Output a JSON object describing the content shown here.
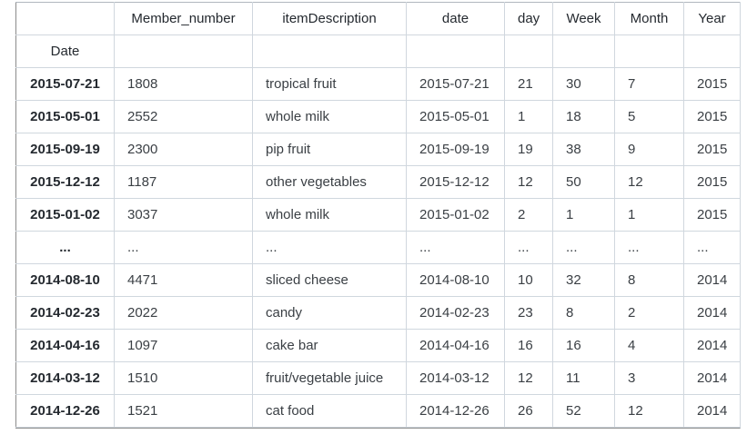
{
  "columns": [
    "Member_number",
    "itemDescription",
    "date",
    "day",
    "Week",
    "Month",
    "Year"
  ],
  "index_name": "Date",
  "rows": [
    {
      "index": "2015-07-21",
      "cells": [
        "1808",
        "tropical fruit",
        "2015-07-21",
        "21",
        "30",
        "7",
        "2015"
      ]
    },
    {
      "index": "2015-05-01",
      "cells": [
        "2552",
        "whole milk",
        "2015-05-01",
        "1",
        "18",
        "5",
        "2015"
      ]
    },
    {
      "index": "2015-09-19",
      "cells": [
        "2300",
        "pip fruit",
        "2015-09-19",
        "19",
        "38",
        "9",
        "2015"
      ]
    },
    {
      "index": "2015-12-12",
      "cells": [
        "1187",
        "other vegetables",
        "2015-12-12",
        "12",
        "50",
        "12",
        "2015"
      ]
    },
    {
      "index": "2015-01-02",
      "cells": [
        "3037",
        "whole milk",
        "2015-01-02",
        "2",
        "1",
        "1",
        "2015"
      ]
    },
    {
      "index": "...",
      "cells": [
        "...",
        "...",
        "...",
        "...",
        "...",
        "...",
        "..."
      ]
    },
    {
      "index": "2014-08-10",
      "cells": [
        "4471",
        "sliced cheese",
        "2014-08-10",
        "10",
        "32",
        "8",
        "2014"
      ]
    },
    {
      "index": "2014-02-23",
      "cells": [
        "2022",
        "candy",
        "2014-02-23",
        "23",
        "8",
        "2",
        "2014"
      ]
    },
    {
      "index": "2014-04-16",
      "cells": [
        "1097",
        "cake bar",
        "2014-04-16",
        "16",
        "16",
        "4",
        "2014"
      ]
    },
    {
      "index": "2014-03-12",
      "cells": [
        "1510",
        "fruit/vegetable juice",
        "2014-03-12",
        "12",
        "11",
        "3",
        "2014"
      ]
    },
    {
      "index": "2014-12-26",
      "cells": [
        "1521",
        "cat food",
        "2014-12-26",
        "26",
        "52",
        "12",
        "2014"
      ]
    }
  ]
}
